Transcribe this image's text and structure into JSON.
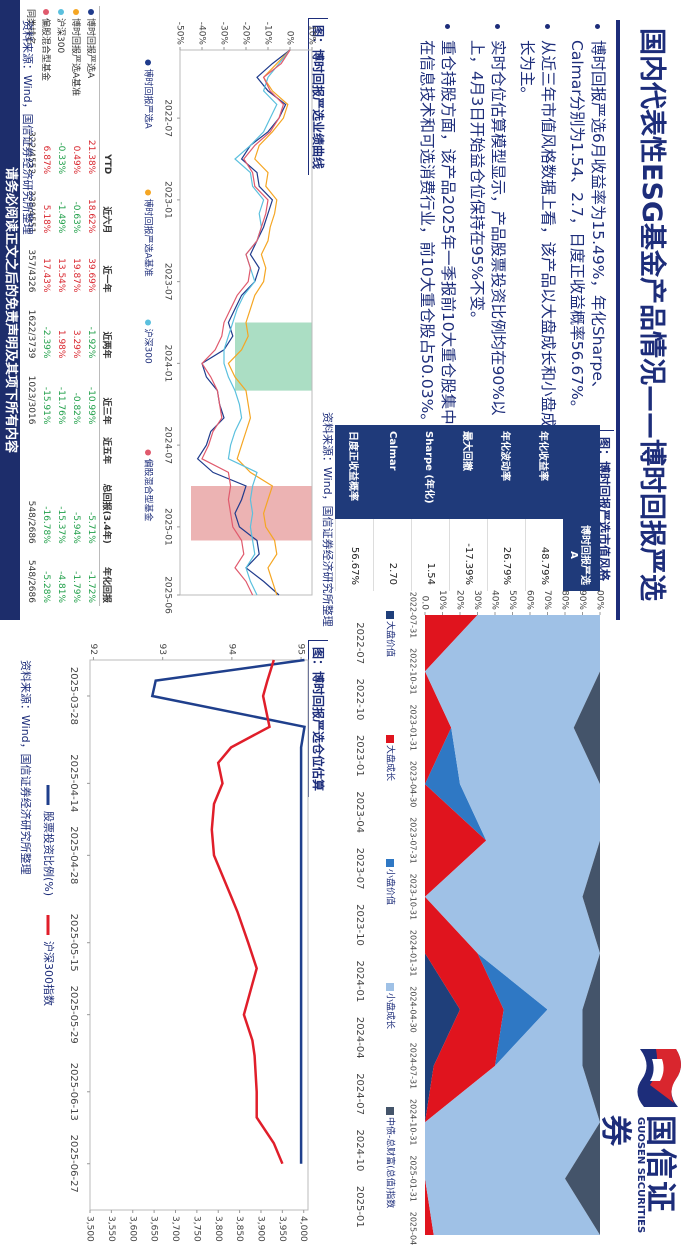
{
  "header": {
    "title": "国内代表性ESG基金产品情况——博时回报严选",
    "logo_cn": "国信证券",
    "logo_en": "GUOSEN SECURITIES"
  },
  "bullets": [
    "博时回报严选6月收益率为15.49%，年化Sharpe、Calmar分别为1.54、2.7，日度正收益概率56.67%。",
    "从近三年市值风格数据上看，该产品以大盘成长和小盘成长为主。",
    "实时仓位估算模型显示，产品股票投资比例均在90%以上，4月3日开始益仓位保持在95%不变。",
    "重仓持股方面，该产品2025年一季报前10大重仓股集中在信息技术和可选消费行业，前10大重仓股占50.03%。"
  ],
  "style_table": {
    "caption": "图：博时回报严选市值风格",
    "column": "博时回报严选A",
    "rows": [
      {
        "label": "年化收益率",
        "value": "48.79%"
      },
      {
        "label": "年化波动率",
        "value": "26.79%"
      },
      {
        "label": "最大回撤",
        "value": "-17.39%"
      },
      {
        "label": "Sharpe (年化)",
        "value": "1.54"
      },
      {
        "label": "Calmar",
        "value": "2.70"
      },
      {
        "label": "日度正收益概率",
        "value": "56.67%"
      }
    ],
    "source": "资料来源：Wind，国信证券经济研究所整理"
  },
  "performance_table": {
    "columns": [
      "YTD",
      "近六月",
      "近一年",
      "近两年",
      "近三年",
      "近五年",
      "总回报(3.4年)",
      "年化回报"
    ],
    "rows": [
      {
        "name": "博时回报严选A",
        "color": "#1f3b8c",
        "cells": [
          "21.38%",
          "18.62%",
          "39.69%",
          "-1.92%",
          "-10.99%",
          null,
          "-5.71%",
          "-1.72%"
        ]
      },
      {
        "name": "博时回报严选A基准",
        "color": "#f5a623",
        "cells": [
          "0.49%",
          "-0.63%",
          "19.87%",
          "3.29%",
          "-0.82%",
          null,
          "-5.94%",
          "-1.79%"
        ]
      },
      {
        "name": "沪深300",
        "color": "#5bc0de",
        "cells": [
          "-0.33%",
          "-1.49%",
          "13.54%",
          "1.98%",
          "-11.76%",
          null,
          "-15.37%",
          "-4.81%"
        ]
      },
      {
        "name": "偏股混合型基金",
        "color": "#e05a6d",
        "cells": [
          "6.87%",
          "5.18%",
          "17.43%",
          "-2.39%",
          "-15.91%",
          null,
          "-16.78%",
          "-5.28%"
        ]
      },
      {
        "name": "同类排名",
        "cells": [
          "322/4552",
          "338/4551",
          "357/4326",
          "1622/3739",
          "1023/3016",
          null,
          "548/2686",
          "548/2686"
        ]
      }
    ],
    "source": "资料来源：Wind，国信证券经济研究所整理"
  },
  "chart_data": [
    {
      "type": "line",
      "title": "图：博时回报严选业绩曲线",
      "categories": [
        "2022-02",
        "2022-03",
        "2022-04",
        "2022-05",
        "2022-06",
        "2022-07",
        "2022-08",
        "2022-09",
        "2022-10",
        "2022-11",
        "2022-12",
        "2023-01",
        "2023-02",
        "2023-03",
        "2023-04",
        "2023-05",
        "2023-06",
        "2023-07",
        "2023-08",
        "2023-09",
        "2023-10",
        "2023-11",
        "2023-12",
        "2024-01",
        "2024-02",
        "2024-03",
        "2024-04",
        "2024-05",
        "2024-06",
        "2024-07",
        "2024-08",
        "2024-09",
        "2024-10",
        "2024-11",
        "2024-12",
        "2025-01",
        "2025-02",
        "2025-03",
        "2025-04",
        "2025-05",
        "2025-06"
      ],
      "xticks": [
        "2022-07",
        "2023-01",
        "2023-07",
        "2024-01",
        "2024-07",
        "2025-01",
        "2025-06"
      ],
      "ylim": [
        -50,
        10
      ],
      "yticks": [
        {
          "value": 10,
          "label": "10%"
        },
        {
          "value": 0,
          "label": "0%"
        },
        {
          "value": -10,
          "label": "-10%"
        },
        {
          "value": -20,
          "label": "-20%"
        },
        {
          "value": -30,
          "label": "-30%"
        },
        {
          "value": -40,
          "label": "-40%"
        },
        {
          "value": -50,
          "label": "-50%"
        }
      ],
      "grid": false,
      "highlights": [
        {
          "start": "2023-10",
          "end": "2024-03",
          "ymin": -25,
          "ymax": 10,
          "color": "#8fd3b0"
        },
        {
          "start": "2024-10",
          "end": "2025-02",
          "ymin": -45,
          "ymax": 10,
          "color": "#e59a9a"
        }
      ],
      "series": [
        {
          "name": "博时回报严选A",
          "color": "#1f3b8c",
          "values": [
            0,
            -8,
            -15,
            -10,
            -2,
            -5,
            -10,
            -18,
            -22,
            -15,
            -14,
            -8,
            -10,
            -12,
            -15,
            -18,
            -14,
            -16,
            -22,
            -25,
            -28,
            -26,
            -30,
            -40,
            -38,
            -33,
            -32,
            -30,
            -36,
            -38,
            -42,
            -35,
            -20,
            -22,
            -25,
            -23,
            -15,
            -14,
            -20,
            -12,
            -5
          ]
        },
        {
          "name": "博时回报严选A基准",
          "color": "#f5a623",
          "values": [
            0,
            -6,
            -12,
            -8,
            -1,
            -3,
            -8,
            -14,
            -16,
            -10,
            -11,
            -6,
            -7,
            -9,
            -10,
            -13,
            -11,
            -12,
            -16,
            -18,
            -20,
            -19,
            -22,
            -28,
            -25,
            -20,
            -19,
            -18,
            -20,
            -22,
            -24,
            -18,
            -8,
            -10,
            -12,
            -11,
            -7,
            -6,
            -10,
            -8,
            -6
          ]
        },
        {
          "name": "沪深300",
          "color": "#5bc0de",
          "values": [
            0,
            -5,
            -10,
            -12,
            -6,
            -9,
            -12,
            -18,
            -25,
            -18,
            -17,
            -12,
            -14,
            -13,
            -15,
            -20,
            -18,
            -16,
            -21,
            -24,
            -26,
            -28,
            -30,
            -30,
            -28,
            -25,
            -23,
            -22,
            -25,
            -27,
            -28,
            -15,
            -17,
            -18,
            -17,
            -18,
            -17,
            -16,
            -20,
            -18,
            -15
          ]
        },
        {
          "name": "偏股混合型基金",
          "color": "#e05a6d",
          "values": [
            0,
            -4,
            -12,
            -9,
            -3,
            -5,
            -9,
            -16,
            -21,
            -17,
            -16,
            -10,
            -11,
            -13,
            -15,
            -20,
            -18,
            -19,
            -24,
            -27,
            -30,
            -31,
            -34,
            -40,
            -36,
            -33,
            -32,
            -31,
            -35,
            -37,
            -40,
            -28,
            -27,
            -28,
            -27,
            -26,
            -22,
            -21,
            -25,
            -20,
            -17
          ]
        }
      ]
    },
    {
      "type": "area",
      "categories": [
        "2022-07-31",
        "2022-10-31",
        "2023-01-31",
        "2023-04-30",
        "2023-07-31",
        "2023-10-31",
        "2024-01-31",
        "2024-04-30",
        "2024-07-31",
        "2024-10-31",
        "2025-01-31",
        "2025-04-30"
      ],
      "x_labels_short": [
        "2022-07",
        "2022-10",
        "2023-01",
        "2023-04",
        "2023-07",
        "2023-10",
        "2024-01",
        "2024-04",
        "2024-07",
        "2024-10",
        "2025-01"
      ],
      "ylim": [
        0,
        100
      ],
      "yticks": [
        {
          "value": 100,
          "label": "100%"
        },
        {
          "value": 90,
          "label": "90%"
        },
        {
          "value": 80,
          "label": "80%"
        },
        {
          "value": 70,
          "label": "70%"
        },
        {
          "value": 60,
          "label": "60%"
        },
        {
          "value": 50,
          "label": "50%"
        },
        {
          "value": 40,
          "label": "40%"
        },
        {
          "value": 30,
          "label": "30%"
        },
        {
          "value": 20,
          "label": "20%"
        },
        {
          "value": 10,
          "label": "10%"
        },
        {
          "value": 0,
          "label": "0.0"
        }
      ],
      "stacked": true,
      "series": [
        {
          "name": "大盘价值",
          "color": "#1f3f7a",
          "values": [
            0,
            0,
            0,
            0,
            0,
            0,
            0,
            20,
            5,
            0,
            0,
            0
          ]
        },
        {
          "name": "大盘成长",
          "color": "#e0141e",
          "values": [
            30,
            0,
            15,
            0,
            35,
            0,
            30,
            25,
            35,
            0,
            0,
            5
          ]
        },
        {
          "name": "小盘价值",
          "color": "#2f78c4",
          "values": [
            0,
            0,
            0,
            20,
            0,
            0,
            0,
            25,
            0,
            0,
            0,
            0
          ]
        },
        {
          "name": "小盘成长",
          "color": "#9fc1e6",
          "values": [
            70,
            100,
            70,
            80,
            65,
            90,
            70,
            20,
            50,
            100,
            80,
            95
          ]
        },
        {
          "name": "中债-总财富(总值)指数",
          "color": "#44546a",
          "values": [
            0,
            0,
            15,
            0,
            0,
            10,
            0,
            10,
            10,
            0,
            20,
            0
          ]
        }
      ]
    },
    {
      "type": "line",
      "title": "图：博时回报严选仓位估算",
      "x": [
        "2025-03-21",
        "2025-03-25",
        "2025-03-28",
        "2025-04-03",
        "2025-04-07",
        "2025-04-10",
        "2025-04-14",
        "2025-04-18",
        "2025-04-23",
        "2025-04-28",
        "2025-05-06",
        "2025-05-09",
        "2025-05-15",
        "2025-05-20",
        "2025-05-23",
        "2025-05-29",
        "2025-06-03",
        "2025-06-06",
        "2025-06-13",
        "2025-06-18",
        "2025-06-23",
        "2025-06-27"
      ],
      "xlim": [
        "2025-03-21",
        "2025-07-06"
      ],
      "xticks": [
        "2025-03-28",
        "2025-04-14",
        "2025-04-28",
        "2025-05-15",
        "2025-05-29",
        "2025-06-13",
        "2025-06-27"
      ],
      "ylim": [
        91.95,
        95.1
      ],
      "yticks": [
        92,
        93,
        94,
        95
      ],
      "y2lim": [
        3500,
        4010
      ],
      "y2ticks": [
        {
          "value": 3500,
          "label": "3,500"
        },
        {
          "value": 3550,
          "label": "3,550"
        },
        {
          "value": 3600,
          "label": "3,600"
        },
        {
          "value": 3650,
          "label": "3,650"
        },
        {
          "value": 3700,
          "label": "3,700"
        },
        {
          "value": 3750,
          "label": "3,750"
        },
        {
          "value": 3800,
          "label": "3,800"
        },
        {
          "value": 3850,
          "label": "3,850"
        },
        {
          "value": 3900,
          "label": "3,900"
        },
        {
          "value": 3950,
          "label": "3,950"
        },
        {
          "value": 4000,
          "label": "4,000"
        }
      ],
      "grid": false,
      "source": "资料来源：Wind，国信证券经济研究所整理",
      "series": [
        {
          "name": "股票投资比例(%)",
          "color": "#1f3f8c",
          "values": [
            95.05,
            92.9,
            92.85,
            95.05,
            95,
            95,
            95,
            95,
            95,
            95,
            95,
            95,
            95,
            95,
            95,
            95,
            95,
            95,
            95,
            95,
            95,
            95
          ]
        },
        {
          "name": "沪深300指数",
          "color": "#e01e2a",
          "axis": "y2",
          "values": [
            3930,
            3915,
            3905,
            3920,
            3830,
            3800,
            3810,
            3790,
            3785,
            3790,
            3830,
            3845,
            3870,
            3890,
            3880,
            3860,
            3880,
            3885,
            3890,
            3890,
            3930,
            3950
          ]
        }
      ]
    }
  ],
  "footer": "请务必阅读正文之后的免责声明及其项下所有内容"
}
